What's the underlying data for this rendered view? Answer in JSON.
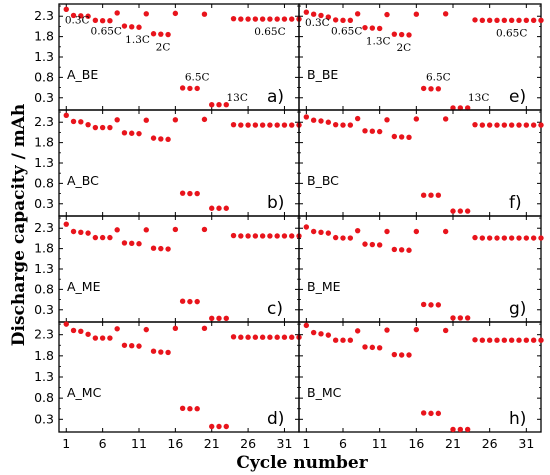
{
  "figure": {
    "ylabel": "Discharge capacity / mAh",
    "xlabel": "Cycle number"
  },
  "colors": {
    "points": "#e8141c",
    "axes": "#000000",
    "background": "#ffffff"
  },
  "chart_data": [
    {
      "type": "scatter",
      "panel": "A_BE",
      "letter": "a)",
      "xlim": [
        0,
        33
      ],
      "ylim": [
        0,
        2.6
      ],
      "xticks": [
        "1",
        "6",
        "11",
        "16",
        "21",
        "26",
        "31"
      ],
      "yticks": [
        "0.3",
        "0.8",
        "1.3",
        "1.8",
        "2.3"
      ],
      "annotations": [
        "0.3C",
        "0.65C",
        "1.3C",
        "2C",
        "6.5C",
        "13C",
        "0.65C"
      ],
      "x": [
        1,
        2,
        3,
        4,
        5,
        6,
        7,
        8,
        9,
        10,
        11,
        12,
        13,
        14,
        15,
        16,
        17,
        18,
        19,
        20,
        21,
        22,
        23,
        24,
        25,
        26,
        27,
        28,
        29,
        30,
        31,
        32,
        33
      ],
      "y": [
        2.47,
        2.32,
        2.31,
        2.3,
        2.2,
        2.19,
        2.19,
        2.38,
        2.06,
        2.04,
        2.03,
        2.36,
        1.87,
        1.86,
        1.85,
        2.37,
        0.54,
        0.53,
        0.53,
        2.35,
        0.13,
        0.13,
        0.13,
        2.24,
        2.23,
        2.23,
        2.23,
        2.23,
        2.23,
        2.23,
        2.23,
        2.23,
        2.23
      ]
    },
    {
      "type": "scatter",
      "panel": "A_BC",
      "letter": "b)",
      "xlim": [
        0,
        33
      ],
      "ylim": [
        0,
        2.6
      ],
      "xticks": [
        "1",
        "6",
        "11",
        "16",
        "21",
        "26",
        "31"
      ],
      "yticks": [
        "0.3",
        "0.8",
        "1.3",
        "1.8",
        "2.3"
      ],
      "x": [
        1,
        2,
        3,
        4,
        5,
        6,
        7,
        8,
        9,
        10,
        11,
        12,
        13,
        14,
        15,
        16,
        17,
        18,
        19,
        20,
        21,
        22,
        23,
        24,
        25,
        26,
        27,
        28,
        29,
        30,
        31,
        32,
        33
      ],
      "y": [
        2.47,
        2.32,
        2.31,
        2.24,
        2.17,
        2.17,
        2.17,
        2.36,
        2.04,
        2.03,
        2.02,
        2.35,
        1.91,
        1.89,
        1.88,
        2.36,
        0.56,
        0.55,
        0.55,
        2.37,
        0.19,
        0.19,
        0.19,
        2.24,
        2.23,
        2.23,
        2.23,
        2.23,
        2.23,
        2.23,
        2.23,
        2.23,
        2.23
      ]
    },
    {
      "type": "scatter",
      "panel": "A_ME",
      "letter": "c)",
      "xlim": [
        0,
        33
      ],
      "ylim": [
        0,
        2.6
      ],
      "xticks": [
        "1",
        "6",
        "11",
        "16",
        "21",
        "26",
        "31"
      ],
      "yticks": [
        "0.3",
        "0.8",
        "1.3",
        "1.8",
        "2.3"
      ],
      "x": [
        1,
        2,
        3,
        4,
        5,
        6,
        7,
        8,
        9,
        10,
        11,
        12,
        13,
        14,
        15,
        16,
        17,
        18,
        19,
        20,
        21,
        22,
        23,
        24,
        25,
        26,
        27,
        28,
        29,
        30,
        31,
        32,
        33
      ],
      "y": [
        2.4,
        2.22,
        2.2,
        2.18,
        2.07,
        2.07,
        2.07,
        2.26,
        1.94,
        1.93,
        1.92,
        2.26,
        1.81,
        1.8,
        1.79,
        2.27,
        0.51,
        0.5,
        0.5,
        2.27,
        0.09,
        0.09,
        0.09,
        2.12,
        2.11,
        2.11,
        2.11,
        2.11,
        2.11,
        2.11,
        2.11,
        2.11,
        2.11
      ]
    },
    {
      "type": "scatter",
      "panel": "A_MC",
      "letter": "d)",
      "xlim": [
        0,
        33
      ],
      "ylim": [
        0,
        2.6
      ],
      "xticks": [
        "1",
        "6",
        "11",
        "16",
        "21",
        "26",
        "31"
      ],
      "yticks": [
        "0.3",
        "0.8",
        "1.3",
        "1.8",
        "2.3"
      ],
      "x": [
        1,
        2,
        3,
        4,
        5,
        6,
        7,
        8,
        9,
        10,
        11,
        12,
        13,
        14,
        15,
        16,
        17,
        18,
        19,
        20,
        21,
        22,
        23,
        24,
        25,
        26,
        27,
        28,
        29,
        30,
        31,
        32,
        33
      ],
      "y": [
        2.55,
        2.4,
        2.38,
        2.31,
        2.22,
        2.22,
        2.22,
        2.44,
        2.05,
        2.04,
        2.03,
        2.42,
        1.91,
        1.89,
        1.88,
        2.45,
        0.56,
        0.55,
        0.55,
        2.45,
        0.13,
        0.13,
        0.13,
        2.25,
        2.24,
        2.24,
        2.24,
        2.24,
        2.24,
        2.24,
        2.24,
        2.24,
        2.24
      ]
    },
    {
      "type": "scatter",
      "panel": "B_BE",
      "letter": "e)",
      "xlim": [
        0,
        33
      ],
      "ylim": [
        0,
        2.6
      ],
      "xticks": [
        "1",
        "6",
        "11",
        "16",
        "21",
        "26",
        "31"
      ],
      "yticks": [
        "0.3",
        "0.8",
        "1.3",
        "1.8",
        "2.3"
      ],
      "annotations": [
        "0.3C",
        "0.65C",
        "1.3C",
        "2C",
        "6.5C",
        "13C",
        "0.65C"
      ],
      "x": [
        1,
        2,
        3,
        4,
        5,
        6,
        7,
        8,
        9,
        10,
        11,
        12,
        13,
        14,
        15,
        16,
        17,
        18,
        19,
        20,
        21,
        22,
        23,
        24,
        25,
        26,
        27,
        28,
        29,
        30,
        31,
        32,
        33
      ],
      "y": [
        2.4,
        2.35,
        2.32,
        2.28,
        2.21,
        2.2,
        2.2,
        2.36,
        2.02,
        2.01,
        2.0,
        2.34,
        1.86,
        1.85,
        1.84,
        2.35,
        0.53,
        0.52,
        0.52,
        2.36,
        0.05,
        0.05,
        0.05,
        2.21,
        2.2,
        2.2,
        2.2,
        2.2,
        2.2,
        2.2,
        2.2,
        2.2,
        2.2
      ]
    },
    {
      "type": "scatter",
      "panel": "B_BC",
      "letter": "f)",
      "xlim": [
        0,
        33
      ],
      "ylim": [
        0,
        2.6
      ],
      "xticks": [
        "1",
        "6",
        "11",
        "16",
        "21",
        "26",
        "31"
      ],
      "yticks": [
        "0.3",
        "0.8",
        "1.3",
        "1.8",
        "2.3"
      ],
      "x": [
        1,
        2,
        3,
        4,
        5,
        6,
        7,
        8,
        9,
        10,
        11,
        12,
        13,
        14,
        15,
        16,
        17,
        18,
        19,
        20,
        21,
        22,
        23,
        24,
        25,
        26,
        27,
        28,
        29,
        30,
        31,
        32,
        33
      ],
      "y": [
        2.43,
        2.35,
        2.33,
        2.3,
        2.24,
        2.23,
        2.23,
        2.39,
        2.09,
        2.08,
        2.07,
        2.36,
        1.95,
        1.94,
        1.93,
        2.38,
        0.51,
        0.51,
        0.51,
        2.38,
        0.12,
        0.12,
        0.12,
        2.24,
        2.23,
        2.23,
        2.23,
        2.23,
        2.23,
        2.23,
        2.23,
        2.23,
        2.23
      ]
    },
    {
      "type": "scatter",
      "panel": "B_ME",
      "letter": "g)",
      "xlim": [
        0,
        33
      ],
      "ylim": [
        0,
        2.6
      ],
      "xticks": [
        "1",
        "6",
        "11",
        "16",
        "21",
        "26",
        "31"
      ],
      "yticks": [
        "0.3",
        "0.8",
        "1.3",
        "1.8",
        "2.3"
      ],
      "x": [
        1,
        2,
        3,
        4,
        5,
        6,
        7,
        8,
        9,
        10,
        11,
        12,
        13,
        14,
        15,
        16,
        17,
        18,
        19,
        20,
        21,
        22,
        23,
        24,
        25,
        26,
        27,
        28,
        29,
        30,
        31,
        32,
        33
      ],
      "y": [
        2.33,
        2.22,
        2.2,
        2.18,
        2.07,
        2.06,
        2.06,
        2.24,
        1.91,
        1.9,
        1.89,
        2.22,
        1.78,
        1.77,
        1.76,
        2.22,
        0.43,
        0.42,
        0.42,
        2.22,
        0.1,
        0.1,
        0.1,
        2.07,
        2.06,
        2.06,
        2.06,
        2.06,
        2.06,
        2.06,
        2.06,
        2.06,
        2.06
      ]
    },
    {
      "type": "scatter",
      "panel": "B_MC",
      "letter": "h)",
      "xlim": [
        0,
        33
      ],
      "ylim": [
        0,
        2.6
      ],
      "xticks": [
        "1",
        "6",
        "11",
        "16",
        "21",
        "26",
        "31"
      ],
      "yticks": [
        "0.3",
        "0.8",
        "1.3",
        "1.8",
        "2.3"
      ],
      "x": [
        1,
        2,
        3,
        4,
        5,
        6,
        7,
        8,
        9,
        10,
        11,
        12,
        13,
        14,
        15,
        16,
        17,
        18,
        19,
        20,
        21,
        22,
        23,
        24,
        25,
        26,
        27,
        28,
        29,
        30,
        31,
        32,
        33
      ],
      "y": [
        2.52,
        2.35,
        2.32,
        2.29,
        2.17,
        2.17,
        2.17,
        2.39,
        2.01,
        2.0,
        1.99,
        2.41,
        1.83,
        1.82,
        1.82,
        2.42,
        0.45,
        0.44,
        0.44,
        2.4,
        0.06,
        0.06,
        0.06,
        2.18,
        2.17,
        2.17,
        2.17,
        2.17,
        2.17,
        2.17,
        2.17,
        2.17,
        2.17
      ]
    }
  ]
}
